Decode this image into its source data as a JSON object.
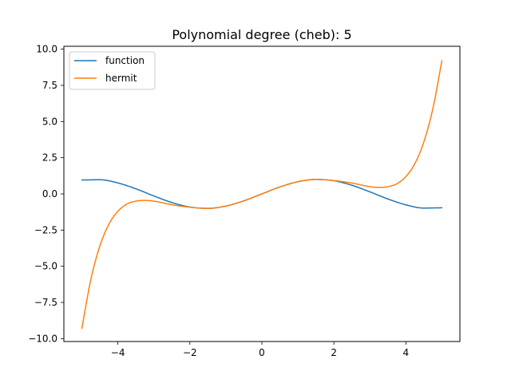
{
  "chart_data": {
    "type": "line",
    "title": "Polynomial degree (cheb): 5",
    "xlabel": "",
    "ylabel": "",
    "xlim": [
      -5.5,
      5.5
    ],
    "ylim": [
      -10.2,
      10.2
    ],
    "xticks": [
      -4,
      -2,
      0,
      2,
      4
    ],
    "xtick_labels": [
      "−4",
      "−2",
      "0",
      "2",
      "4"
    ],
    "yticks": [
      10.0,
      7.5,
      5.0,
      2.5,
      0.0,
      -2.5,
      -5.0,
      -7.5,
      -10.0
    ],
    "ytick_labels": [
      "10.0",
      "7.5",
      "5.0",
      "2.5",
      "0.0",
      "−2.5",
      "−5.0",
      "−7.5",
      "−10.0"
    ],
    "grid": false,
    "legend_position": "upper left",
    "series": [
      {
        "name": "function",
        "color": "#1f77b4",
        "x": [
          -5.0,
          -4.5,
          -4.0,
          -3.5,
          -3.0,
          -2.5,
          -2.0,
          -1.5,
          -1.0,
          -0.5,
          0.0,
          0.5,
          1.0,
          1.5,
          2.0,
          2.5,
          3.0,
          3.5,
          4.0,
          4.5,
          5.0
        ],
        "y": [
          0.959,
          0.978,
          0.757,
          0.351,
          -0.141,
          -0.598,
          -0.909,
          -0.997,
          -0.841,
          -0.479,
          0.0,
          0.479,
          0.841,
          0.997,
          0.909,
          0.598,
          0.141,
          -0.351,
          -0.757,
          -0.978,
          -0.959
        ]
      },
      {
        "name": "hermit",
        "color": "#ff7f0e",
        "x": [
          -5.0,
          -4.75,
          -4.5,
          -4.25,
          -4.0,
          -3.75,
          -3.5,
          -3.25,
          -3.0,
          -2.5,
          -2.0,
          -1.5,
          -1.0,
          -0.5,
          0.0,
          0.5,
          1.0,
          1.5,
          2.0,
          2.5,
          3.0,
          3.25,
          3.5,
          3.75,
          4.0,
          4.25,
          4.5,
          4.75,
          5.0
        ],
        "y": [
          -9.3,
          -5.9,
          -3.6,
          -2.1,
          -1.2,
          -0.7,
          -0.5,
          -0.45,
          -0.5,
          -0.75,
          -0.92,
          -1.0,
          -0.84,
          -0.48,
          0.0,
          0.48,
          0.84,
          1.0,
          0.92,
          0.75,
          0.5,
          0.45,
          0.5,
          0.7,
          1.2,
          2.1,
          3.6,
          5.9,
          9.2
        ]
      }
    ]
  }
}
